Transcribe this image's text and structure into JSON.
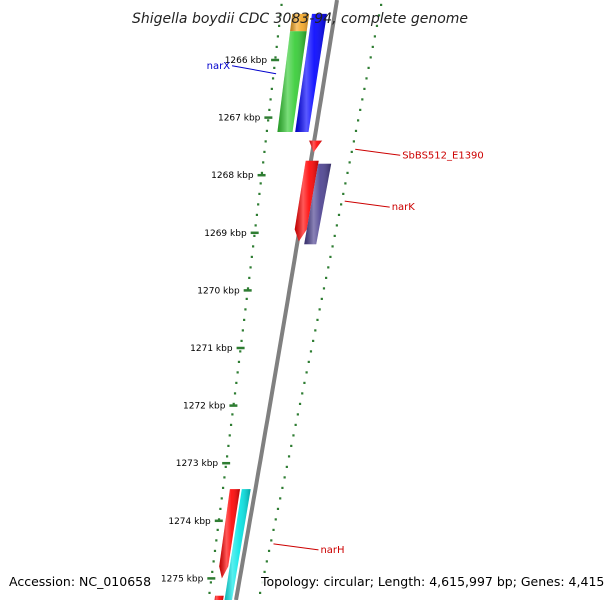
{
  "title": "Shigella boydii CDC 3083-94, complete genome",
  "accession": "Accession: NC_010658",
  "topology": "Topology: circular; Length: 4,615,997 bp; Genes: 4,415",
  "colors": {
    "backbone": "#808080",
    "tick": "#2e7d32",
    "label_blue": "#0000cc",
    "label_red": "#cc0000"
  },
  "chart_data": {
    "type": "genome-map",
    "ticks": [
      {
        "label": "1266 kbp",
        "kbp": 1266
      },
      {
        "label": "1267 kbp",
        "kbp": 1267
      },
      {
        "label": "1268 kbp",
        "kbp": 1268
      },
      {
        "label": "1269 kbp",
        "kbp": 1269
      },
      {
        "label": "1270 kbp",
        "kbp": 1270
      },
      {
        "label": "1271 kbp",
        "kbp": 1271
      },
      {
        "label": "1272 kbp",
        "kbp": 1272
      },
      {
        "label": "1273 kbp",
        "kbp": 1273
      },
      {
        "label": "1274 kbp",
        "kbp": 1274
      },
      {
        "label": "1275 kbp",
        "kbp": 1275
      }
    ],
    "genes": [
      {
        "track": "outer-2",
        "color": "#f5a623",
        "start_kbp": 1265.2,
        "end_kbp": 1265.5,
        "arrow": "none"
      },
      {
        "track": "outer-2",
        "color": "#33cc33",
        "start_kbp": 1265.5,
        "end_kbp": 1267.25,
        "arrow": "none"
      },
      {
        "track": "outer-1",
        "color": "#0000ff",
        "start_kbp": 1265.2,
        "end_kbp": 1267.25,
        "arrow": "none"
      },
      {
        "track": "inner-1",
        "color": "#ff0000",
        "start_kbp": 1267.4,
        "end_kbp": 1267.6,
        "arrow": "end"
      },
      {
        "track": "inner-1",
        "color": "#ff0000",
        "start_kbp": 1267.75,
        "end_kbp": 1269.15,
        "arrow": "end"
      },
      {
        "track": "inner-2",
        "color": "#4a3f8f",
        "start_kbp": 1267.8,
        "end_kbp": 1269.2,
        "arrow": "none"
      },
      {
        "track": "outer-2",
        "color": "#ff0000",
        "start_kbp": 1273.45,
        "end_kbp": 1275.0,
        "arrow": "end"
      },
      {
        "track": "outer-2",
        "color": "#ff0000",
        "start_kbp": 1275.3,
        "end_kbp": 1275.6,
        "arrow": "none"
      },
      {
        "track": "outer-1",
        "color": "#00e5e5",
        "start_kbp": 1273.45,
        "end_kbp": 1275.6,
        "arrow": "none"
      }
    ],
    "labels": [
      {
        "text": "narX",
        "color": "#0000cc",
        "side": "left",
        "kbp": 1266.1
      },
      {
        "text": "SbBS512_E1390",
        "color": "#cc0000",
        "side": "right",
        "kbp": 1267.55
      },
      {
        "text": "narK",
        "color": "#cc0000",
        "side": "right",
        "kbp": 1268.45
      },
      {
        "text": "narH",
        "color": "#cc0000",
        "side": "right",
        "kbp": 1274.4
      }
    ]
  }
}
